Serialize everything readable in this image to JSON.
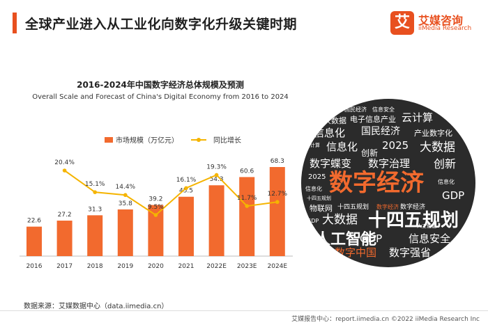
{
  "header": {
    "title": "全球产业进入从工业化向数字化升级关键时期"
  },
  "logo": {
    "mark": "艾",
    "name": "艾媒咨询",
    "sub": "iiMedia Research"
  },
  "chart_data": {
    "type": "bar",
    "title": "2016-2024年中国数字经济总体规模及预测",
    "subtitle": "Overall Scale and Forecast of China's Digital Economy from 2016 to 2024",
    "categories": [
      "2016",
      "2017",
      "2018",
      "2019",
      "2020",
      "2021",
      "2022E",
      "2023E",
      "2024E"
    ],
    "series": [
      {
        "name": "市场规模（万亿元）",
        "type": "bar",
        "color": "#f26a2e",
        "values": [
          22.6,
          27.2,
          31.3,
          35.8,
          39.2,
          45.5,
          54.3,
          60.6,
          68.3
        ],
        "labels": [
          "22.6",
          "27.2",
          "31.3",
          "35.8",
          "39.2",
          "45.5",
          "54.3",
          "60.6",
          "68.3"
        ]
      },
      {
        "name": "同比增长",
        "type": "line",
        "color": "#f5b400",
        "values": [
          null,
          20.4,
          15.1,
          14.4,
          9.5,
          16.1,
          19.3,
          11.7,
          12.7
        ],
        "labels": [
          "",
          "20.4%",
          "15.1%",
          "14.4%",
          "9.5%",
          "16.1%",
          "19.3%",
          "11.7%",
          "12.7%"
        ]
      }
    ],
    "legend_position": "top"
  },
  "wordcloud": [
    {
      "text": "国民经济",
      "color": "#ffffff"
    },
    {
      "text": "信息安全",
      "color": "#ffffff"
    },
    {
      "text": "大数据",
      "color": "#ffffff"
    },
    {
      "text": "电子信息产业",
      "color": "#ffffff"
    },
    {
      "text": "云计算",
      "color": "#ffffff"
    },
    {
      "text": "信息化",
      "color": "#ffffff"
    },
    {
      "text": "国民经济",
      "color": "#ffffff"
    },
    {
      "text": "产业数字化",
      "color": "#ffffff"
    },
    {
      "text": "云计算",
      "color": "#ffffff"
    },
    {
      "text": "信息化",
      "color": "#ffffff"
    },
    {
      "text": "2025",
      "color": "#ffffff"
    },
    {
      "text": "大数据",
      "color": "#ffffff"
    },
    {
      "text": "创新",
      "color": "#ffffff"
    },
    {
      "text": "数字蝶变",
      "color": "#ffffff"
    },
    {
      "text": "数字治理",
      "color": "#ffffff"
    },
    {
      "text": "创新",
      "color": "#ffffff"
    },
    {
      "text": "2025",
      "color": "#ffffff"
    },
    {
      "text": "数字经济",
      "color": "#f26a2e"
    },
    {
      "text": "信息化",
      "color": "#ffffff"
    },
    {
      "text": "信息化",
      "color": "#ffffff"
    },
    {
      "text": "GDP",
      "color": "#ffffff"
    },
    {
      "text": "十四五规划",
      "color": "#ffffff"
    },
    {
      "text": "物联网",
      "color": "#ffffff"
    },
    {
      "text": "十四五规划",
      "color": "#ffffff"
    },
    {
      "text": "数字经济",
      "color": "#f26a2e"
    },
    {
      "text": "数字经济",
      "color": "#ffffff"
    },
    {
      "text": "大数据",
      "color": "#ffffff"
    },
    {
      "text": "十四五规划",
      "color": "#ffffff"
    },
    {
      "text": "GDP",
      "color": "#ffffff"
    },
    {
      "text": "人工智能",
      "color": "#ffffff"
    },
    {
      "text": "GDP",
      "color": "#ffffff"
    },
    {
      "text": "人工智能",
      "color": "#ffffff"
    },
    {
      "text": "信息安全",
      "color": "#ffffff"
    },
    {
      "text": "数字中国",
      "color": "#f26a2e"
    },
    {
      "text": "数字强省",
      "color": "#ffffff"
    }
  ],
  "source": "数据来源：艾媒数据中心（data.iimedia.cn）",
  "footer": "艾媒报告中心：report.iimedia.cn  ©2022  iiMedia Research Inc"
}
